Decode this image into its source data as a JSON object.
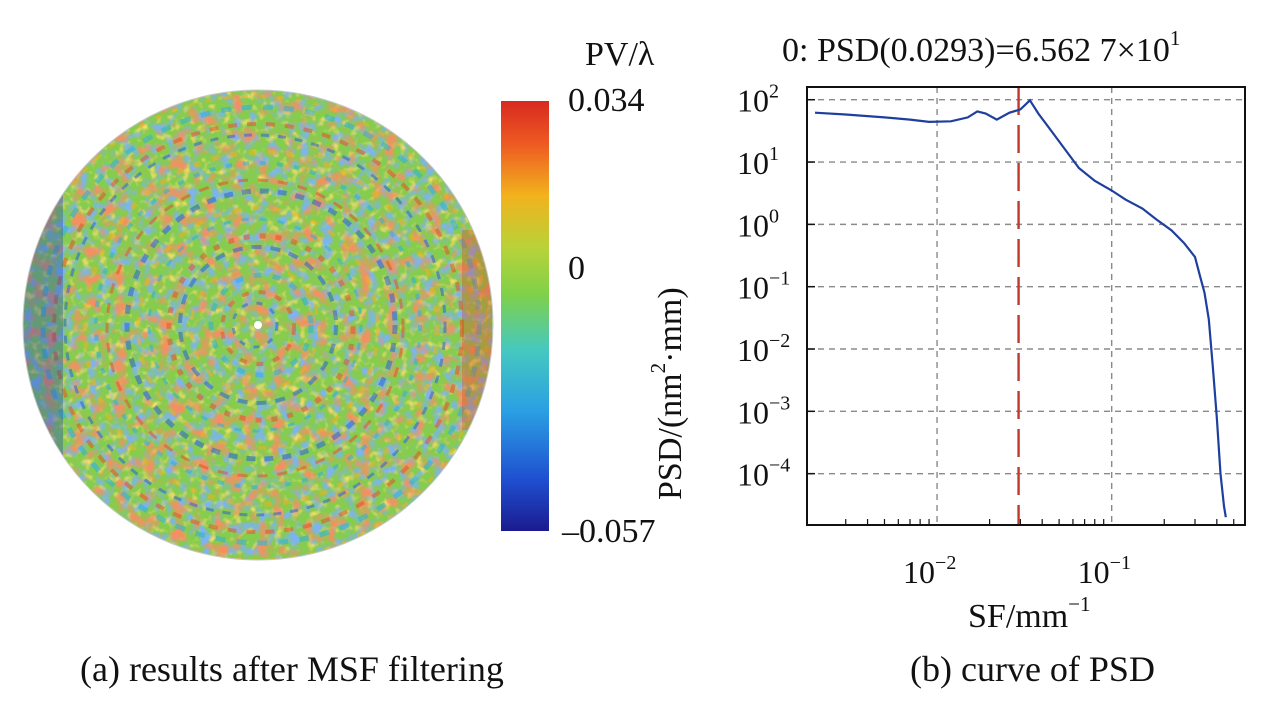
{
  "panels": {
    "a": {
      "caption": "(a) results after MSF filtering",
      "colorbar": {
        "title": "PV/λ",
        "max_label": "0.034",
        "mid_label": "0",
        "min_label": "–0.057",
        "colors": [
          "#1b1b8f",
          "#1f4fd1",
          "#2aa0e3",
          "#45c8c0",
          "#7fd14a",
          "#b9d238",
          "#f2b21d",
          "#ee5a22",
          "#d72a20"
        ]
      }
    },
    "b": {
      "caption": "(b) curve of PSD",
      "annotation": "0: PSD(0.0293)=6.562 7×10",
      "annotation_exp": "1",
      "xlabel": "SF/mm",
      "xlabel_exp": "−1",
      "ylabel_1": "PSD/(nm",
      "ylabel_sup": "2",
      "ylabel_2": "·mm)",
      "x_ticks": [
        {
          "base": "10",
          "exp": "−2",
          "value": 0.01
        },
        {
          "base": "10",
          "exp": "−1",
          "value": 0.1
        }
      ],
      "y_ticks": [
        {
          "base": "10",
          "exp": "2",
          "value": 100
        },
        {
          "base": "10",
          "exp": "1",
          "value": 10
        },
        {
          "base": "10",
          "exp": "0",
          "value": 1
        },
        {
          "base": "10",
          "exp": "−1",
          "value": 0.1
        },
        {
          "base": "10",
          "exp": "−2",
          "value": 0.01
        },
        {
          "base": "10",
          "exp": "−3",
          "value": 0.001
        },
        {
          "base": "10",
          "exp": "−4",
          "value": 0.0001
        }
      ],
      "line_color": "#1f3f9e",
      "marker_color": "#c0392b"
    }
  },
  "chart_data": {
    "type": "line",
    "xscale": "log",
    "yscale": "log",
    "xlim": [
      0.0018,
      0.58
    ],
    "ylim": [
      1.5e-05,
      160
    ],
    "grid": true,
    "marker_x": 0.0293,
    "marker_label": "0: PSD(0.0293)=6.562 7×10^1",
    "x": [
      0.002,
      0.003,
      0.005,
      0.007,
      0.009,
      0.012,
      0.015,
      0.017,
      0.019,
      0.022,
      0.026,
      0.03,
      0.034,
      0.038,
      0.045,
      0.055,
      0.065,
      0.08,
      0.1,
      0.12,
      0.15,
      0.18,
      0.22,
      0.26,
      0.3,
      0.32,
      0.34,
      0.36,
      0.38,
      0.4,
      0.42,
      0.44,
      0.45
    ],
    "y": [
      62,
      58,
      52,
      48,
      44,
      45,
      52,
      65,
      60,
      48,
      62,
      70,
      98,
      60,
      32,
      15,
      8,
      5,
      3.5,
      2.5,
      1.8,
      1.2,
      0.8,
      0.5,
      0.3,
      0.15,
      0.08,
      0.03,
      0.005,
      0.0008,
      0.0001,
      3e-05,
      2e-05
    ]
  }
}
